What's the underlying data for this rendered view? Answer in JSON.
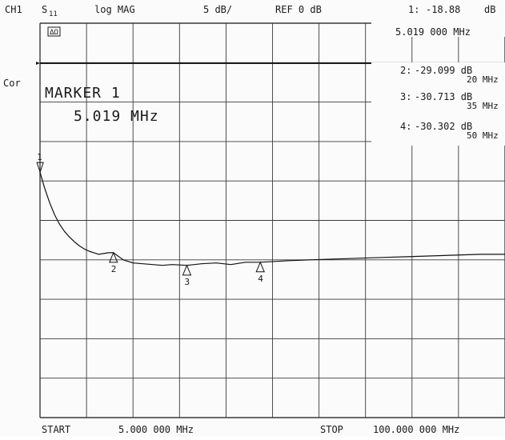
{
  "header": {
    "channel": "CH1",
    "param_s": "S",
    "param_sub": "11",
    "format": "log MAG",
    "scale": "5 dB/",
    "ref": "REF 0 dB",
    "active_marker_label": "1:",
    "active_marker_value": "-18.88",
    "active_marker_unit": "dB"
  },
  "side": {
    "cor_label": "Cor",
    "status_box": "ΔΩ"
  },
  "active_marker_freq": "5.019 000 MHz",
  "marker_panel": {
    "title": "MARKER 1",
    "value": "5.019 MHz"
  },
  "marker_list": [
    {
      "label": "2:",
      "value": "-29.099 dB",
      "freq": "20 MHz"
    },
    {
      "label": "3:",
      "value": "-30.713 dB",
      "freq": "35 MHz"
    },
    {
      "label": "4:",
      "value": "-30.302 dB",
      "freq": "50 MHz"
    }
  ],
  "footer": {
    "start_label": "START",
    "start_value": "5.000 000 MHz",
    "stop_label": "STOP",
    "stop_value": "100.000 000 MHz"
  },
  "chart_data": {
    "type": "line",
    "x_unit": "MHz",
    "y_unit": "dB",
    "xlim": [
      5,
      100
    ],
    "ylim": [
      -50,
      0
    ],
    "grid": true,
    "x": [
      5,
      6,
      7,
      8,
      9,
      10,
      11,
      12,
      13,
      14,
      15,
      16,
      17,
      18,
      19,
      20,
      22,
      24,
      26,
      28,
      30,
      32,
      35,
      38,
      41,
      44,
      47,
      50,
      53,
      56,
      60,
      65,
      70,
      75,
      80,
      85,
      90,
      95,
      100
    ],
    "y": [
      -18.9,
      -21.0,
      -22.8,
      -24.3,
      -25.5,
      -26.4,
      -27.1,
      -27.7,
      -28.2,
      -28.6,
      -28.9,
      -29.1,
      -29.3,
      -29.2,
      -29.1,
      -29.1,
      -30.0,
      -30.4,
      -30.5,
      -30.6,
      -30.7,
      -30.6,
      -30.7,
      -30.5,
      -30.4,
      -30.6,
      -30.3,
      -30.3,
      -30.2,
      -30.1,
      -30.0,
      -29.9,
      -29.8,
      -29.7,
      -29.6,
      -29.5,
      -29.4,
      -29.3,
      -29.3
    ],
    "markers": [
      {
        "n": "1",
        "x": 5.019,
        "y": -18.88
      },
      {
        "n": "2",
        "x": 20,
        "y": -29.099
      },
      {
        "n": "3",
        "x": 35,
        "y": -30.713
      },
      {
        "n": "4",
        "x": 50,
        "y": -30.302
      }
    ]
  }
}
